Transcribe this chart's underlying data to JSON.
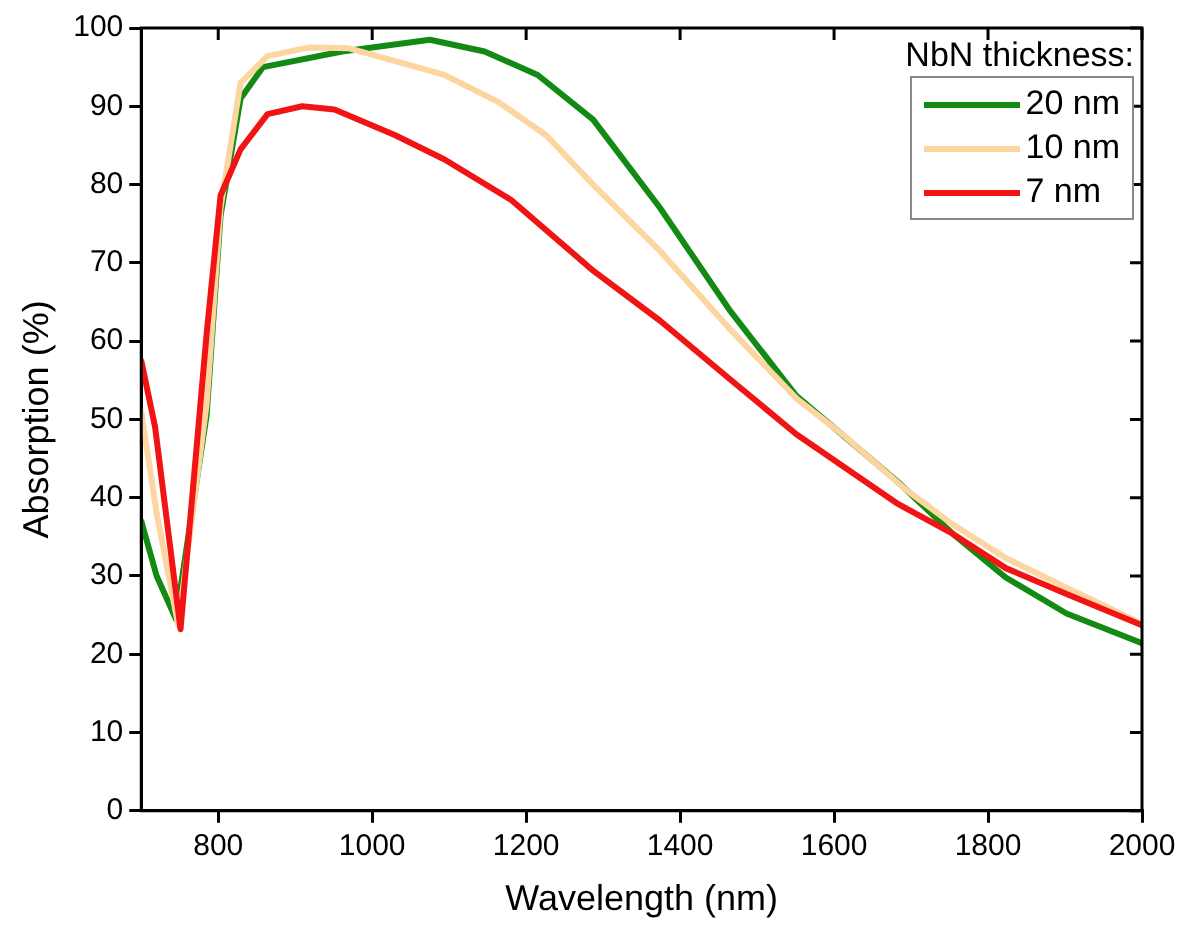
{
  "chart_data": {
    "type": "line",
    "xlabel": "Wavelength (nm)",
    "ylabel": "Absorption (%)",
    "legend_title": "NbN thickness:",
    "legend": "top right",
    "grid": false,
    "marker": "none",
    "line_style": "solid",
    "xlim": [
      700,
      2000
    ],
    "xticks": [
      800,
      1000,
      1200,
      1400,
      1600,
      1800,
      2000
    ],
    "ylim": [
      0,
      100
    ],
    "yticks": [
      0,
      10,
      20,
      30,
      40,
      50,
      60,
      70,
      80,
      90,
      100
    ],
    "series": [
      {
        "name": "20 nm",
        "color": "#138a13",
        "x": [
          700,
          720,
          745,
          785,
          803,
          829,
          858,
          961,
          1075,
          1146,
          1215,
          1287,
          1374,
          1464,
          1551,
          1604,
          1683,
          1754,
          1823,
          1902,
          2000
        ],
        "values": [
          37,
          30,
          24.5,
          50.6,
          76,
          91,
          95,
          97,
          98.5,
          97,
          94,
          88.3,
          77,
          64,
          53,
          48.6,
          42,
          35.4,
          29.8,
          25.2,
          21.4
        ]
      },
      {
        "name": "10 nm",
        "color": "#fdd5a0",
        "x": [
          700,
          720,
          748,
          785,
          803,
          829,
          864,
          917,
          970,
          1022,
          1094,
          1163,
          1226,
          1287,
          1374,
          1464,
          1551,
          1612,
          1691,
          1754,
          1823,
          1902,
          2000
        ],
        "values": [
          51,
          38,
          23.7,
          52,
          77,
          93,
          96.4,
          97.5,
          97.4,
          96,
          94,
          90.6,
          86.3,
          80,
          71.5,
          61.6,
          52.7,
          48,
          41.2,
          36.6,
          32.3,
          28.5,
          23.9
        ]
      },
      {
        "name": "7 nm",
        "color": "#f01414",
        "x": [
          700,
          718,
          751,
          785,
          803,
          829,
          864,
          909,
          951,
          1030,
          1094,
          1181,
          1287,
          1374,
          1464,
          1551,
          1683,
          1754,
          1823,
          1902,
          2000
        ],
        "values": [
          57.5,
          49,
          23.2,
          61,
          78.6,
          84.5,
          89,
          90,
          89.6,
          86.3,
          83.2,
          78,
          69,
          62.6,
          55.2,
          48.1,
          39.2,
          35.4,
          31,
          27.7,
          23.7
        ]
      }
    ]
  }
}
